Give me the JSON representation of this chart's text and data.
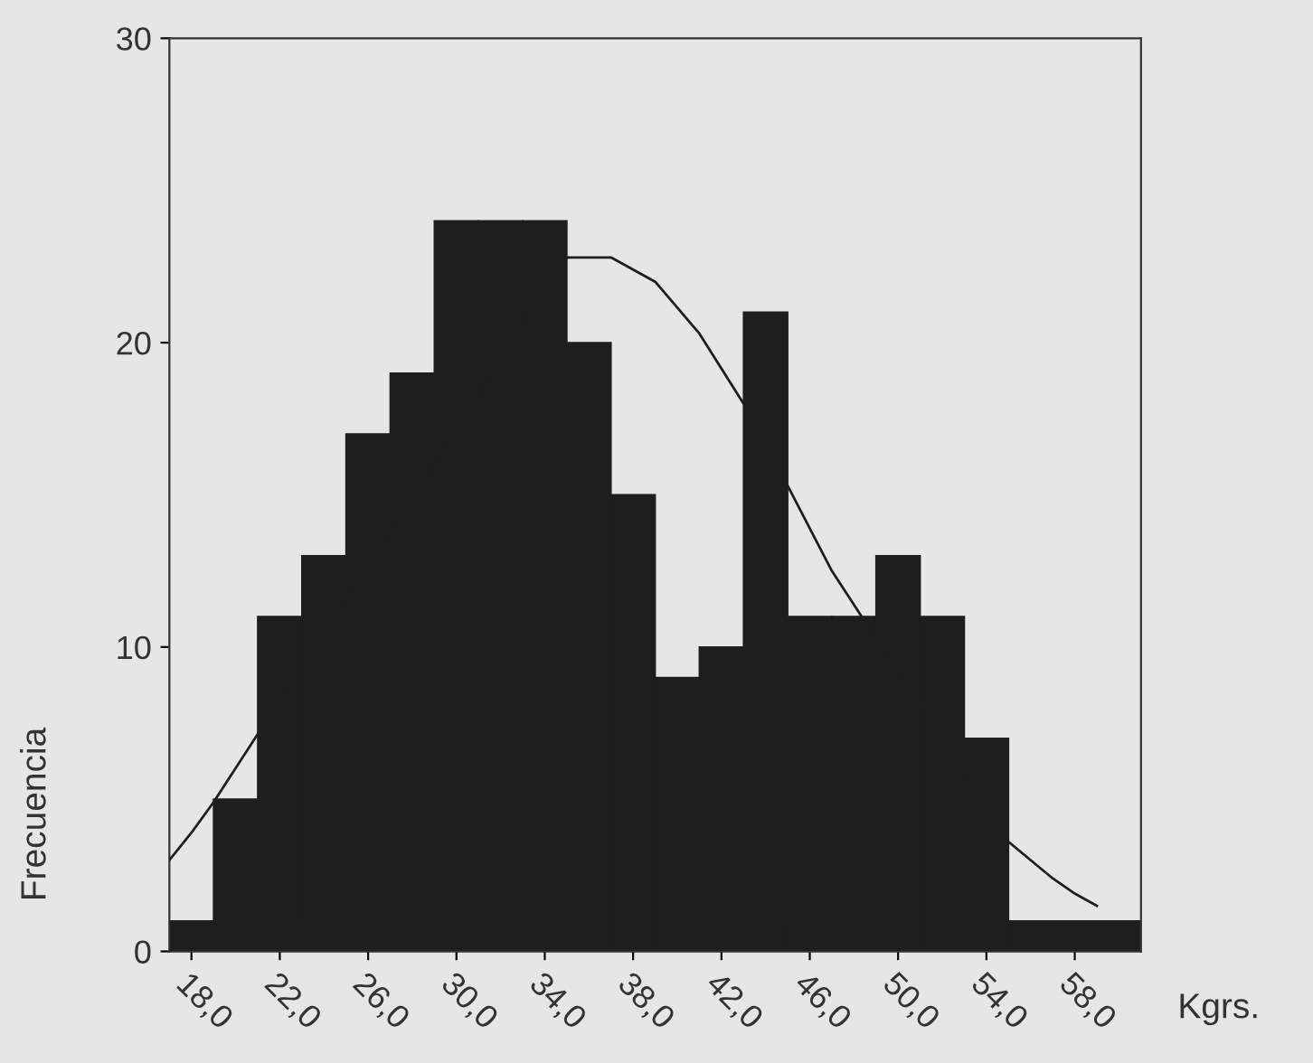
{
  "chart_data": {
    "type": "histogram",
    "xlabel": "Kgrs.",
    "ylabel": "Frecuencia",
    "bins": [
      17,
      19,
      21,
      23,
      25,
      27,
      29,
      31,
      33,
      35,
      37,
      39,
      41,
      43,
      45,
      47,
      49,
      51,
      53,
      55,
      57,
      59,
      61
    ],
    "values": [
      1,
      5,
      11,
      13,
      17,
      19,
      24,
      24,
      24,
      20,
      15,
      9,
      10,
      21,
      11,
      11,
      13,
      11,
      7,
      1,
      1,
      1
    ],
    "color": "#1e1e1e",
    "series": [
      {
        "type": "line",
        "color": "#1e1e1e",
        "x": [
          17,
          18,
          19,
          35,
          37,
          39,
          41,
          43,
          45,
          47,
          55,
          56,
          57,
          58,
          59
        ],
        "values": [
          3.0,
          3.9,
          4.9,
          22.8,
          22.8,
          22.0,
          20.3,
          18.0,
          15.3,
          12.5,
          3.6,
          3.0,
          2.4,
          1.9,
          1.5
        ]
      }
    ],
    "xlim": [
      17,
      61
    ],
    "xticks": [
      {
        "value": 18,
        "label": "18,0"
      },
      {
        "value": 22,
        "label": "22,0"
      },
      {
        "value": 26,
        "label": "26,0"
      },
      {
        "value": 30,
        "label": "30,0"
      },
      {
        "value": 34,
        "label": "34,0"
      },
      {
        "value": 38,
        "label": "38,0"
      },
      {
        "value": 42,
        "label": "42,0"
      },
      {
        "value": 46,
        "label": "46,0"
      },
      {
        "value": 50,
        "label": "50,0"
      },
      {
        "value": 54,
        "label": "54,0"
      },
      {
        "value": 58,
        "label": "58,0"
      }
    ],
    "ylim": [
      0,
      30
    ],
    "yticks": [
      0,
      10,
      20,
      30
    ],
    "grid": false,
    "legend": false
  }
}
